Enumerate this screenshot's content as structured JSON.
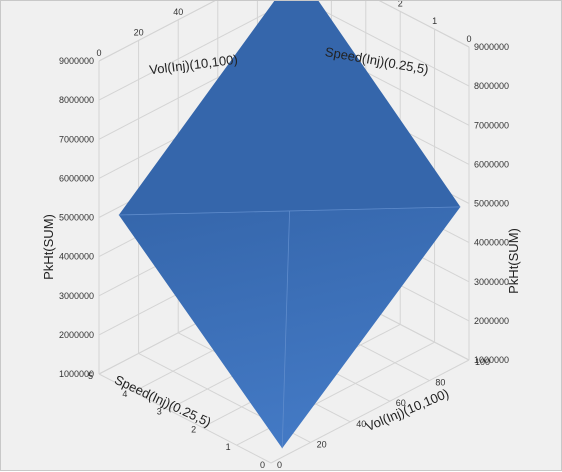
{
  "chart_data": {
    "type": "surface3d",
    "title": "",
    "axes": {
      "vol": {
        "label": "Vol(Inj)(10,100)",
        "range": [
          0,
          100
        ],
        "ticks": [
          "0",
          "20",
          "40",
          "60",
          "80",
          "100"
        ]
      },
      "speed": {
        "label": "Speed(Inj)(0.25,5)",
        "range": [
          0,
          5
        ],
        "ticks": [
          "0",
          "1",
          "2",
          "3",
          "4",
          "5"
        ]
      },
      "z": {
        "label": "PkHt(SUM)",
        "range": [
          1000000,
          9000000
        ],
        "ticks_left": [
          "1000000",
          "2000000",
          "3000000",
          "4000000",
          "5000000",
          "6000000",
          "7000000",
          "8000000",
          "9000000"
        ],
        "ticks_right": [
          "1000000",
          "2000000",
          "3000000",
          "4000000",
          "5000000",
          "6000000",
          "7000000",
          "8000000",
          "9000000"
        ]
      }
    },
    "surface": {
      "corners": [
        {
          "vol": 10,
          "speed": 0.25,
          "z": 1000000
        },
        {
          "vol": 10,
          "speed": 5,
          "z": 4800000
        },
        {
          "vol": 100,
          "speed": 0.25,
          "z": 4800000
        },
        {
          "vol": 100,
          "speed": 5,
          "z": 8700000
        }
      ],
      "color": "#3a6fb8"
    },
    "grid": true,
    "colors": {
      "background": "#f0f0f0",
      "grid": "#d4d4d4",
      "surface_front": "#3d73bd",
      "surface_back": "#3566ab"
    }
  }
}
